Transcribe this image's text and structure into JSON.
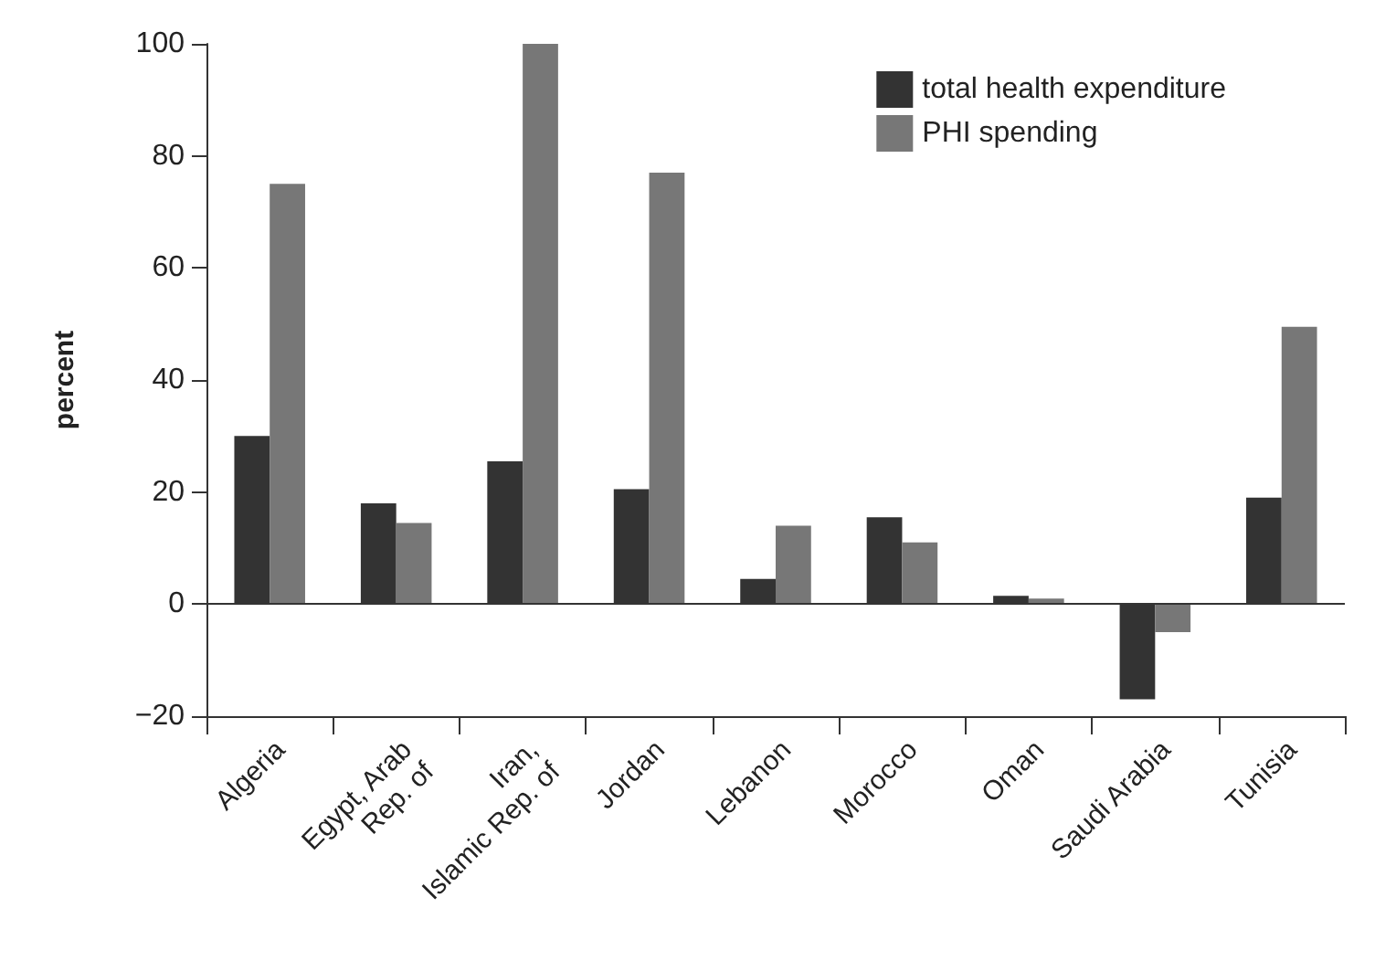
{
  "chart_data": {
    "type": "bar",
    "ylabel": "percent",
    "categories": [
      "Algeria",
      "Egypt, Arab\nRep. of",
      "Iran,\nIslamic Rep. of",
      "Jordan",
      "Lebanon",
      "Morocco",
      "Oman",
      "Saudi Arabia",
      "Tunisia"
    ],
    "series": [
      {
        "name": "total health expenditure",
        "color": "#333333",
        "values": [
          30,
          18,
          25.5,
          20.5,
          4.5,
          15.5,
          1.5,
          -17,
          19
        ]
      },
      {
        "name": "PHI spending",
        "color": "#777777",
        "values": [
          75,
          14.5,
          100,
          77,
          14,
          11,
          1,
          -5,
          49.5
        ]
      }
    ],
    "ylim": [
      -20,
      100
    ],
    "yticks": [
      {
        "value": -20,
        "label": "−20"
      },
      0,
      20,
      40,
      60,
      80,
      100
    ],
    "ref_lines": [
      {
        "axis": "y",
        "value": 0,
        "color": "#333333"
      }
    ],
    "grid": false,
    "legend": "top right"
  }
}
